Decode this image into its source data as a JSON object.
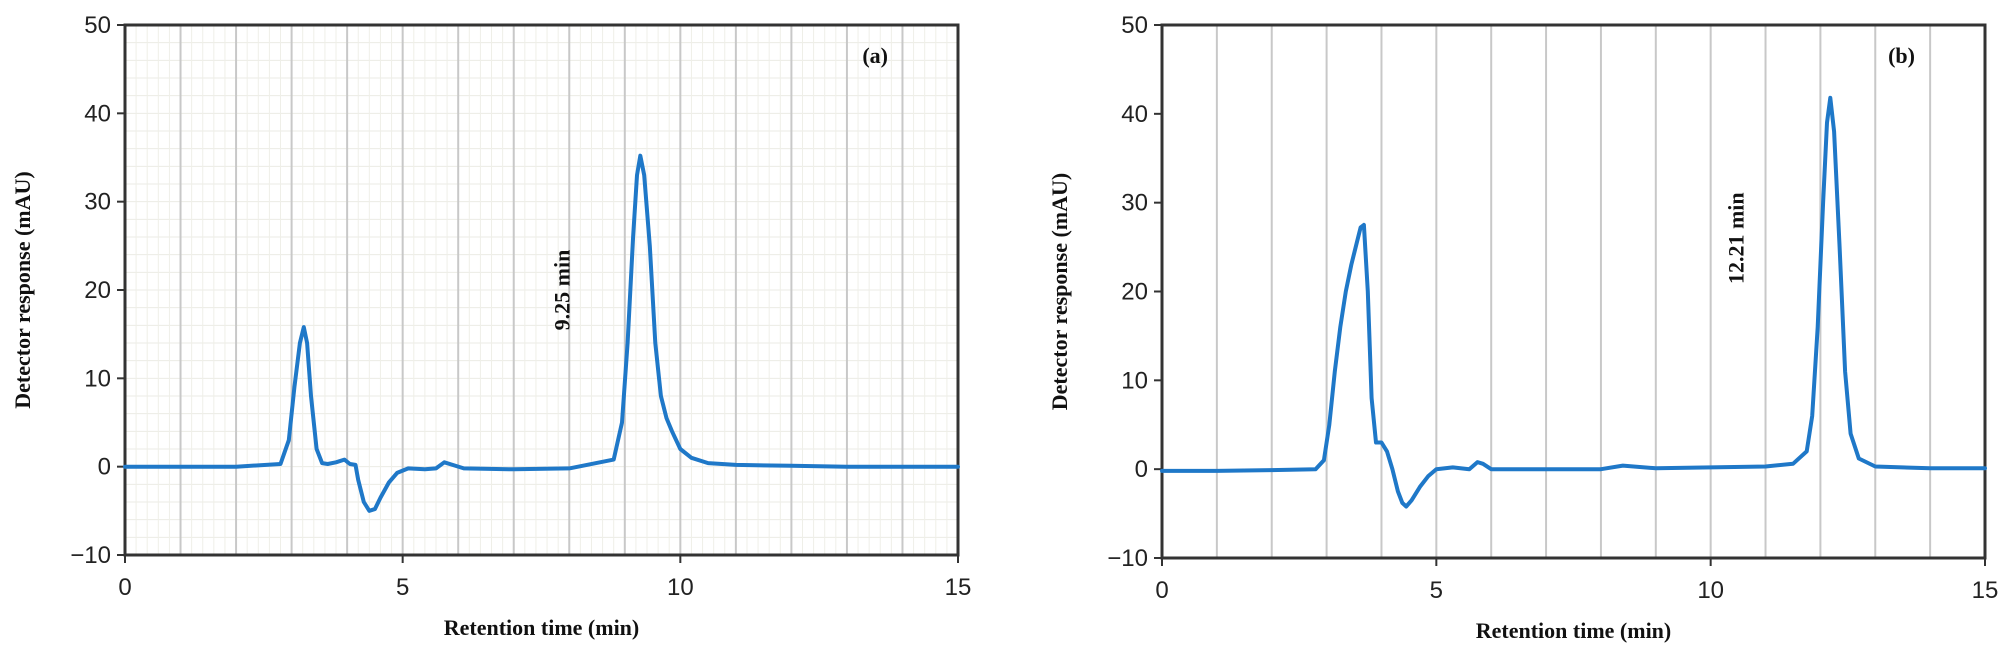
{
  "chart_data": [
    {
      "type": "line",
      "panel_label": "(a)",
      "xlabel": "Retention time (min)",
      "ylabel": "Detector response (mAU)",
      "xlim": [
        0,
        15
      ],
      "ylim": [
        -10,
        50
      ],
      "xticks": [
        0,
        5,
        10,
        15
      ],
      "yticks": [
        -10,
        0,
        10,
        20,
        30,
        40,
        50
      ],
      "grid": "major-vertical-and-minor",
      "line_color": "#1f78c8",
      "annotations": [
        {
          "text": "9.25 min",
          "x": 8.0,
          "y": 20,
          "rotation": -90
        }
      ],
      "series": [
        {
          "x": [
            0,
            1,
            2,
            2.8,
            2.95,
            3.05,
            3.15,
            3.22,
            3.28,
            3.35,
            3.45,
            3.55,
            3.65,
            3.8,
            3.95,
            4.05,
            4.15,
            4.2,
            4.3,
            4.4,
            4.5,
            4.6,
            4.75,
            4.9,
            5.1,
            5.4,
            5.6,
            5.75,
            5.9,
            6.1,
            7,
            8,
            8.8,
            8.95,
            9.05,
            9.15,
            9.22,
            9.28,
            9.35,
            9.45,
            9.55,
            9.65,
            9.75,
            9.85,
            10.0,
            10.2,
            10.5,
            11,
            12,
            13,
            14,
            15
          ],
          "y": [
            0,
            0,
            0,
            0.3,
            3,
            9,
            14,
            15.8,
            14,
            8,
            2,
            0.4,
            0.3,
            0.5,
            0.8,
            0.3,
            0.2,
            -1.5,
            -4,
            -5,
            -4.8,
            -3.5,
            -1.8,
            -0.7,
            -0.2,
            -0.3,
            -0.2,
            0.5,
            0.2,
            -0.2,
            -0.3,
            -0.2,
            0.8,
            5,
            14,
            26,
            33,
            35.2,
            33,
            25,
            14,
            8,
            5.5,
            4,
            2,
            1,
            0.4,
            0.2,
            0.1,
            0,
            0,
            0
          ]
        }
      ]
    },
    {
      "type": "line",
      "panel_label": "(b)",
      "xlabel": "Retention time (min)",
      "ylabel": "Detector response (mAU)",
      "xlim": [
        0,
        15
      ],
      "ylim": [
        -10,
        50
      ],
      "xticks": [
        0,
        5,
        10,
        15
      ],
      "yticks": [
        -10,
        0,
        10,
        20,
        30,
        40,
        50
      ],
      "grid": "major-vertical",
      "line_color": "#1f78c8",
      "annotations": [
        {
          "text": "12.21 min",
          "x": 10.6,
          "y": 26,
          "rotation": -90
        }
      ],
      "series": [
        {
          "x": [
            0,
            1,
            2,
            2.8,
            2.95,
            3.05,
            3.15,
            3.25,
            3.35,
            3.45,
            3.55,
            3.62,
            3.68,
            3.75,
            3.82,
            3.9,
            4.0,
            4.1,
            4.2,
            4.3,
            4.38,
            4.45,
            4.55,
            4.7,
            4.85,
            5.0,
            5.3,
            5.6,
            5.75,
            5.85,
            6.0,
            7,
            8,
            8.4,
            9,
            10,
            11,
            11.5,
            11.75,
            11.85,
            11.95,
            12.05,
            12.12,
            12.18,
            12.25,
            12.35,
            12.45,
            12.55,
            12.7,
            13,
            14,
            15
          ],
          "y": [
            -0.2,
            -0.2,
            -0.1,
            0,
            1,
            5,
            11,
            16,
            20,
            23,
            25.5,
            27.2,
            27.5,
            20,
            8,
            3,
            3,
            2,
            0,
            -2.5,
            -3.8,
            -4.2,
            -3.5,
            -2,
            -0.8,
            0,
            0.2,
            0,
            0.8,
            0.6,
            0,
            0,
            0,
            0.4,
            0.1,
            0.2,
            0.3,
            0.6,
            2,
            6,
            16,
            30,
            39,
            41.8,
            38,
            25,
            11,
            4,
            1.2,
            0.3,
            0.1,
            0.1
          ]
        }
      ]
    }
  ]
}
